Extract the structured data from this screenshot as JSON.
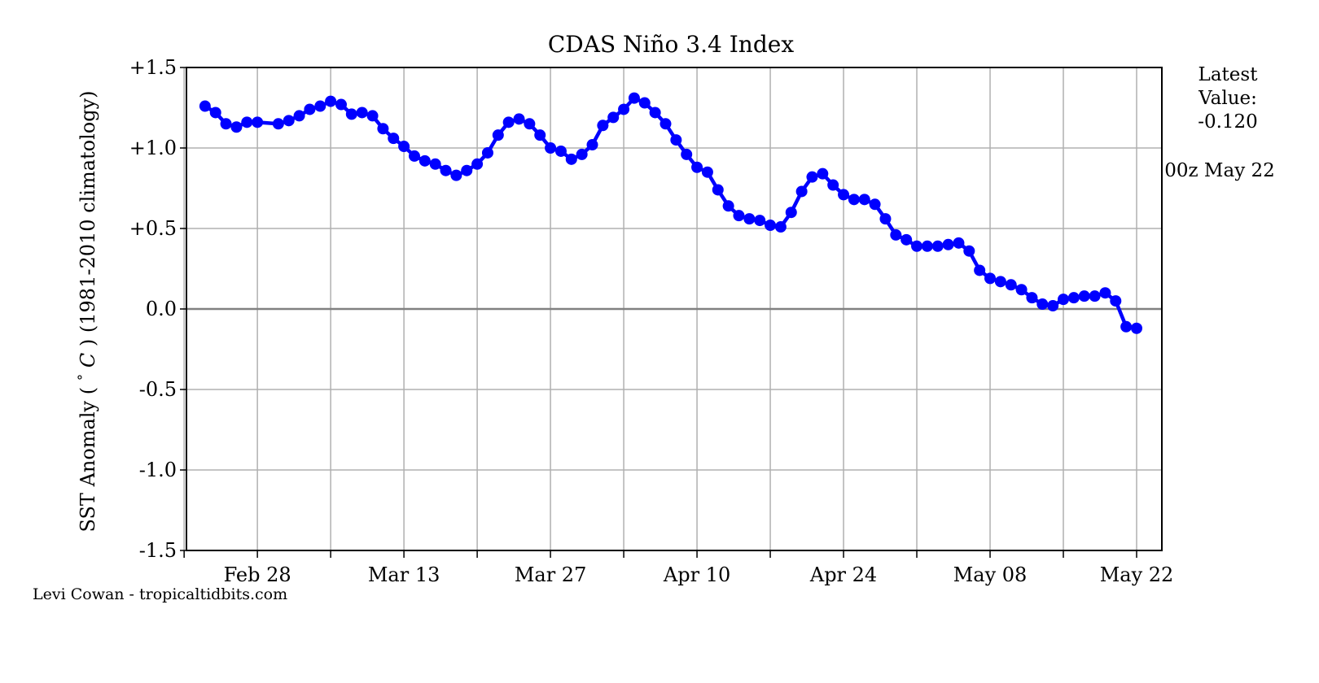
{
  "side_panel": {
    "latest_label_line1": "Latest",
    "latest_label_line2": "Value:",
    "latest_value": "-0.120",
    "time_label": "00z May 22"
  },
  "credit": "Levi Cowan - tropicaltidbits.com",
  "colors": {
    "series": "#0000ff",
    "grid": "#b0b0b0",
    "zero_line": "#808080",
    "frame": "#000000"
  },
  "chart_data": {
    "type": "line",
    "title": "CDAS Niño 3.4 Index",
    "xlabel": "",
    "ylabel": "SST Anomaly (°C) (1981-2010 climatology)",
    "ylabel_parts": [
      "SST Anomaly (",
      "°",
      "C",
      ") (1981-2010 climatology)"
    ],
    "ylim": [
      -1.5,
      1.5
    ],
    "yticks": [
      1.5,
      1.0,
      0.5,
      0.0,
      -0.5,
      -1.0,
      -1.5
    ],
    "ytick_labels": [
      "+1.5",
      "+1.0",
      "+0.5",
      "0.0",
      "-0.5",
      "-1.0",
      "-1.5"
    ],
    "x_start": "Feb 22",
    "x_end": "May 22",
    "x_tick_labels": [
      "Feb 28",
      "Mar 13",
      "Mar 27",
      "Apr 10",
      "Apr 24",
      "May 08",
      "May 22"
    ],
    "grid": true,
    "zero_line": true,
    "series": [
      {
        "name": "",
        "x": [
          "Feb 23",
          "Feb 24",
          "Feb 25",
          "Feb 26",
          "Feb 27",
          "Feb 28",
          "Mar 01",
          "Mar 02",
          "Mar 03",
          "Mar 04",
          "Mar 05",
          "Mar 06",
          "Mar 07",
          "Mar 08",
          "Mar 09",
          "Mar 10",
          "Mar 11",
          "Mar 12",
          "Mar 13",
          "Mar 14",
          "Mar 15",
          "Mar 16",
          "Mar 17",
          "Mar 18",
          "Mar 19",
          "Mar 20",
          "Mar 21",
          "Mar 22",
          "Mar 23",
          "Mar 24",
          "Mar 25",
          "Mar 26",
          "Mar 27",
          "Mar 28",
          "Mar 29",
          "Mar 30",
          "Mar 31",
          "Apr 01",
          "Apr 02",
          "Apr 03",
          "Apr 04",
          "Apr 05",
          "Apr 06",
          "Apr 07",
          "Apr 08",
          "Apr 09",
          "Apr 10",
          "Apr 11",
          "Apr 12",
          "Apr 13",
          "Apr 14",
          "Apr 15",
          "Apr 16",
          "Apr 17",
          "Apr 18",
          "Apr 19",
          "Apr 20",
          "Apr 21",
          "Apr 22",
          "Apr 23",
          "Apr 24",
          "Apr 25",
          "Apr 26",
          "Apr 27",
          "Apr 28",
          "Apr 29",
          "Apr 30",
          "May 01",
          "May 02",
          "May 03",
          "May 04",
          "May 05",
          "May 06",
          "May 07",
          "May 08",
          "May 09",
          "May 10",
          "May 11",
          "May 12",
          "May 13",
          "May 14",
          "May 15",
          "May 16",
          "May 17",
          "May 18",
          "May 19",
          "May 20",
          "May 21",
          "May 22"
        ],
        "values": [
          1.26,
          1.22,
          1.15,
          1.13,
          1.16,
          1.16,
          1.15,
          1.17,
          1.2,
          1.24,
          1.26,
          1.29,
          1.27,
          1.21,
          1.22,
          1.2,
          1.12,
          1.06,
          1.01,
          0.95,
          0.92,
          0.9,
          0.86,
          0.83,
          0.86,
          0.9,
          0.97,
          1.08,
          1.16,
          1.18,
          1.15,
          1.08,
          1.0,
          0.98,
          0.93,
          0.96,
          1.02,
          1.14,
          1.19,
          1.24,
          1.31,
          1.28,
          1.22,
          1.15,
          1.05,
          0.96,
          0.88,
          0.85,
          0.74,
          0.64,
          0.58,
          0.56,
          0.55,
          0.52,
          0.51,
          0.6,
          0.73,
          0.82,
          0.84,
          0.77,
          0.71,
          0.68,
          0.68,
          0.65,
          0.56,
          0.46,
          0.43,
          0.39,
          0.39,
          0.39,
          0.4,
          0.41,
          0.36,
          0.24,
          0.19,
          0.17,
          0.15,
          0.12,
          0.07,
          0.03,
          0.02,
          0.06,
          0.07,
          0.08,
          0.08,
          0.1,
          0.05,
          -0.11,
          -0.12
        ]
      }
    ]
  }
}
